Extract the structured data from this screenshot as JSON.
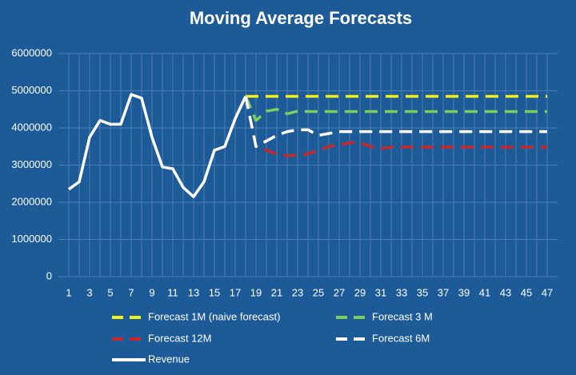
{
  "chart_data": {
    "type": "line",
    "title": "Moving Average Forecasts",
    "categories": [
      "1",
      null,
      "3",
      null,
      "5",
      null,
      "7",
      null,
      "9",
      null,
      "11",
      null,
      "13",
      null,
      "15",
      null,
      "17",
      null,
      "19",
      null,
      "21",
      null,
      "23",
      null,
      "25",
      null,
      "27",
      null,
      "29",
      null,
      "31",
      null,
      "33",
      null,
      "35",
      null,
      "37",
      null,
      "39",
      null,
      "41",
      null,
      "43",
      null,
      "45",
      null,
      "47"
    ],
    "series": [
      {
        "name": "Forecast 1M (naive forecast)",
        "color": "#f2f21a",
        "dashed": true,
        "values": [
          null,
          null,
          null,
          null,
          null,
          null,
          null,
          null,
          null,
          null,
          null,
          null,
          null,
          null,
          null,
          null,
          null,
          4850000,
          4850000,
          4850000,
          4850000,
          4850000,
          4850000,
          4850000,
          4850000,
          4850000,
          4850000,
          4850000,
          4850000,
          4850000,
          4850000,
          4850000,
          4850000,
          4850000,
          4850000,
          4850000,
          4850000,
          4850000,
          4850000,
          4850000,
          4850000,
          4850000,
          4850000,
          4850000,
          4850000,
          4850000,
          4850000
        ]
      },
      {
        "name": "Forecast 3 M",
        "color": "#7ccf5a",
        "dashed": true,
        "values": [
          null,
          null,
          null,
          null,
          null,
          null,
          null,
          null,
          null,
          null,
          null,
          null,
          null,
          null,
          null,
          null,
          null,
          4850000,
          4200000,
          4450000,
          4500000,
          4380000,
          4450000,
          4440000,
          4440000,
          4440000,
          4440000,
          4440000,
          4440000,
          4440000,
          4440000,
          4440000,
          4440000,
          4440000,
          4440000,
          4440000,
          4440000,
          4440000,
          4440000,
          4440000,
          4440000,
          4440000,
          4440000,
          4440000,
          4440000,
          4440000,
          4440000
        ]
      },
      {
        "name": "Forecast 12M",
        "color": "#c8282c",
        "dashed": true,
        "values": [
          null,
          null,
          null,
          null,
          null,
          null,
          null,
          null,
          null,
          null,
          null,
          null,
          null,
          null,
          null,
          null,
          null,
          4850000,
          3500000,
          3400000,
          3300000,
          3250000,
          3270000,
          3300000,
          3400000,
          3500000,
          3550000,
          3600000,
          3600000,
          3500000,
          3450000,
          3480000,
          3480000,
          3480000,
          3480000,
          3480000,
          3480000,
          3480000,
          3480000,
          3480000,
          3480000,
          3480000,
          3480000,
          3480000,
          3480000,
          3480000,
          3480000
        ]
      },
      {
        "name": "Forecast 6M",
        "color": "#ffffff",
        "dashed": true,
        "values": [
          null,
          null,
          null,
          null,
          null,
          null,
          null,
          null,
          null,
          null,
          null,
          null,
          null,
          null,
          null,
          null,
          null,
          4850000,
          3500000,
          3650000,
          3800000,
          3900000,
          3950000,
          3950000,
          3800000,
          3850000,
          3900000,
          3900000,
          3900000,
          3900000,
          3900000,
          3900000,
          3900000,
          3900000,
          3900000,
          3900000,
          3900000,
          3900000,
          3900000,
          3900000,
          3900000,
          3900000,
          3900000,
          3900000,
          3900000,
          3900000,
          3900000
        ]
      },
      {
        "name": "Revenue",
        "color": "#ffffff",
        "dashed": false,
        "values": [
          2350000,
          2550000,
          3750000,
          4200000,
          4100000,
          4100000,
          4900000,
          4800000,
          3750000,
          2950000,
          2900000,
          2400000,
          2150000,
          2550000,
          3400000,
          3500000,
          4250000,
          4850000,
          null,
          null,
          null,
          null,
          null,
          null,
          null,
          null,
          null,
          null,
          null,
          null,
          null,
          null,
          null,
          null,
          null,
          null,
          null,
          null,
          null,
          null,
          null,
          null,
          null,
          null,
          null,
          null,
          null
        ]
      }
    ],
    "ylim": [
      0,
      6000000
    ],
    "yticks": [
      0,
      1000000,
      2000000,
      3000000,
      4000000,
      5000000,
      6000000
    ],
    "grid": true,
    "legend": "bottom"
  }
}
